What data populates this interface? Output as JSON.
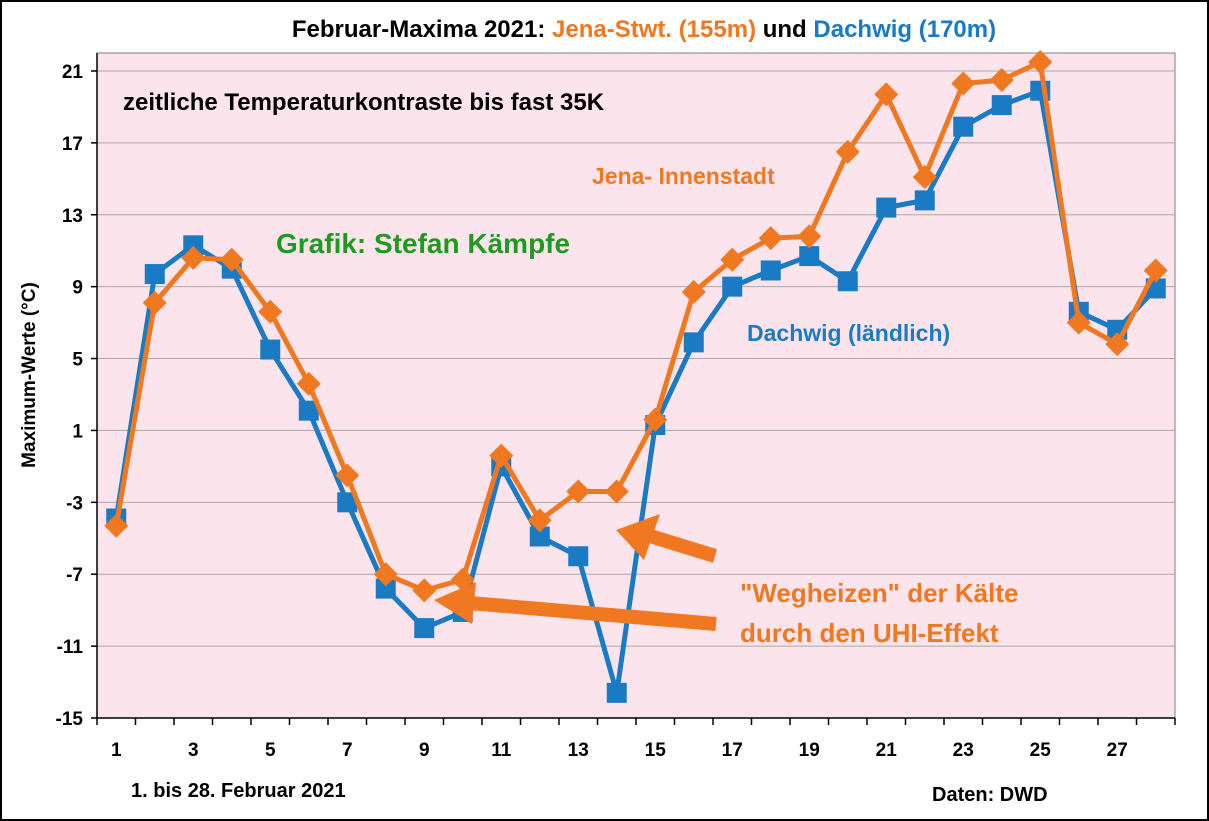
{
  "title": {
    "prefix": "Februar-Maxima 2021: ",
    "jena": "Jena-Stwt. (155m)",
    "mid": " und ",
    "dachwig": "Dachwig (170m)"
  },
  "colors": {
    "jena": "#F07820",
    "dachwig": "#1A7AC4",
    "plot_bg": "#FCE4EC",
    "grid": "#A8A8A8",
    "annotation_green": "#1F9A1F",
    "arrow": "#F07820"
  },
  "annotations": {
    "contrast": "zeitliche Temperaturkontraste bis fast 35K",
    "credit": "Grafik: Stefan Kämpfe",
    "jena_label": "Jena- Innenstadt",
    "dachwig_label": "Dachwig (ländlich)",
    "uhi_line1": "\"Wegheizen\" der Kälte",
    "uhi_line2": "durch den UHI-Effekt",
    "period": "1. bis 28. Februar 2021",
    "source": "Daten: DWD"
  },
  "chart_data": {
    "type": "line",
    "ylabel": "Maximum-Werte (°C)",
    "xlabel": "1. bis 28. Februar 2021",
    "ylim": [
      -15,
      22
    ],
    "yticks": [
      -15,
      -11,
      -7,
      -3,
      1,
      5,
      9,
      13,
      17,
      21
    ],
    "x": [
      1,
      2,
      3,
      4,
      5,
      6,
      7,
      8,
      9,
      10,
      11,
      12,
      13,
      14,
      15,
      16,
      17,
      18,
      19,
      20,
      21,
      22,
      23,
      24,
      25,
      26,
      27,
      28
    ],
    "xticks": [
      1,
      3,
      5,
      7,
      9,
      11,
      13,
      15,
      17,
      19,
      21,
      23,
      25,
      27
    ],
    "grid": true,
    "series": [
      {
        "name": "Jena-Stwt. (155m)",
        "marker": "diamond",
        "values": [
          -4.3,
          8.1,
          10.6,
          10.5,
          7.6,
          3.6,
          -1.5,
          -7.0,
          -7.9,
          -7.3,
          -0.4,
          -4.0,
          -2.4,
          -2.4,
          1.6,
          8.7,
          10.5,
          11.7,
          11.8,
          16.5,
          19.7,
          15.1,
          20.3,
          20.5,
          21.5,
          7.0,
          5.8,
          9.9
        ]
      },
      {
        "name": "Dachwig (170m)",
        "marker": "square",
        "values": [
          -3.9,
          9.7,
          11.3,
          10.0,
          5.5,
          2.1,
          -3.0,
          -7.8,
          -10.0,
          -9.1,
          -1.0,
          -4.9,
          -6.0,
          -13.6,
          1.3,
          5.9,
          9.0,
          9.9,
          10.7,
          9.3,
          13.4,
          13.8,
          17.9,
          19.1,
          19.9,
          7.6,
          6.6,
          8.9
        ]
      }
    ]
  }
}
